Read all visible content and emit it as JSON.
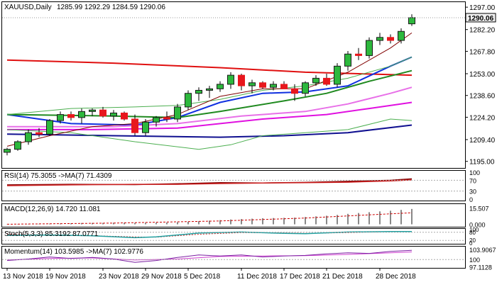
{
  "header": {
    "symbol": "XAUUSD,Daily",
    "ohlc": "1285.99 1292.29 1284.59 1290.06"
  },
  "colors": {
    "bull": "#2db83d",
    "bear": "#e8171d",
    "bull_border": "#1a1a1a",
    "ma_red": "#e01010",
    "ma_blue": "#1030e0",
    "ma_green": "#208a20",
    "ma_pink": "#e870e8",
    "ma_magenta": "#e010e0",
    "ma_navy": "#101090",
    "bb_green": "#4caf50",
    "dark_red": "#800000",
    "rsi_ma": "#cc2020",
    "macd_hist": "#888888",
    "macd_signal": "#cc0000",
    "stoch_main": "#20a0a0",
    "stoch_signal": "#cc2020",
    "mom_main": "#7b1fa2",
    "mom_signal": "#d040d0",
    "price_tag_bg": "#f0f0f0"
  },
  "chart_data": [
    {
      "type": "candlestick",
      "pane": "price",
      "title": "XAUUSD,Daily",
      "ylim": [
        1193,
        1298
      ],
      "y_ticks": [
        "1297.00",
        "1282.20",
        "1267.80",
        "1253.00",
        "1238.60",
        "1224.20",
        "1209.40",
        "1195.00"
      ],
      "current_price_label": "1290.06",
      "current_price": 1290.06,
      "x_labels": [
        "13 Nov 2018",
        "19 Nov 2018",
        "23 Nov 2018",
        "29 Nov 2018",
        "5 Dec 2018",
        "11 Dec 2018",
        "17 Dec 2018",
        "21 Dec 2018",
        "28 Dec 2018"
      ],
      "x_label_index": [
        0,
        4,
        9,
        13,
        17,
        22,
        26,
        30,
        35
      ],
      "candles": [
        [
          1201,
          1204,
          1199,
          1203
        ],
        [
          1203,
          1209,
          1202,
          1208
        ],
        [
          1208,
          1216,
          1206,
          1214
        ],
        [
          1214,
          1217,
          1211,
          1213
        ],
        [
          1213,
          1223,
          1212,
          1222
        ],
        [
          1222,
          1228,
          1220,
          1226
        ],
        [
          1226,
          1228,
          1222,
          1224
        ],
        [
          1224,
          1230,
          1220,
          1228
        ],
        [
          1228,
          1230,
          1225,
          1229
        ],
        [
          1229,
          1231,
          1224,
          1225
        ],
        [
          1225,
          1229,
          1222,
          1227
        ],
        [
          1227,
          1228,
          1222,
          1223
        ],
        [
          1223,
          1226,
          1212,
          1214
        ],
        [
          1214,
          1223,
          1212,
          1221
        ],
        [
          1221,
          1225,
          1218,
          1224
        ],
        [
          1224,
          1228,
          1221,
          1223
        ],
        [
          1223,
          1233,
          1221,
          1231
        ],
        [
          1231,
          1242,
          1229,
          1240
        ],
        [
          1240,
          1244,
          1235,
          1242
        ],
        [
          1242,
          1245,
          1237,
          1243
        ],
        [
          1243,
          1248,
          1241,
          1246
        ],
        [
          1246,
          1254,
          1243,
          1252
        ],
        [
          1252,
          1253,
          1242,
          1245
        ],
        [
          1245,
          1249,
          1240,
          1247
        ],
        [
          1247,
          1248,
          1243,
          1244
        ],
        [
          1244,
          1248,
          1242,
          1246
        ],
        [
          1246,
          1248,
          1243,
          1243
        ],
        [
          1243,
          1246,
          1235,
          1240
        ],
        [
          1240,
          1248,
          1238,
          1247
        ],
        [
          1247,
          1252,
          1245,
          1250
        ],
        [
          1250,
          1253,
          1245,
          1246
        ],
        [
          1246,
          1260,
          1244,
          1258
        ],
        [
          1258,
          1268,
          1255,
          1266
        ],
        [
          1266,
          1270,
          1262,
          1265
        ],
        [
          1265,
          1277,
          1263,
          1275
        ],
        [
          1275,
          1280,
          1272,
          1277
        ],
        [
          1277,
          1279,
          1273,
          1275
        ],
        [
          1275,
          1283,
          1273,
          1281
        ],
        [
          1285.99,
          1292.29,
          1284.59,
          1290.06
        ]
      ],
      "series": [
        {
          "color_key": "ma_red",
          "points": [
            [
              0,
              1262
            ],
            [
              10,
              1260
            ],
            [
              20,
              1257
            ],
            [
              28,
              1254
            ],
            [
              38,
              1252
            ]
          ]
        },
        {
          "color_key": "ma_blue",
          "points": [
            [
              0,
              1226
            ],
            [
              6,
              1220
            ],
            [
              12,
              1219
            ],
            [
              16,
              1224
            ],
            [
              20,
              1234
            ],
            [
              24,
              1240
            ],
            [
              28,
              1241
            ],
            [
              32,
              1245
            ],
            [
              36,
              1258
            ],
            [
              38,
              1264
            ]
          ]
        },
        {
          "color_key": "ma_green",
          "points": [
            [
              0,
              1226
            ],
            [
              10,
              1225
            ],
            [
              16,
              1224
            ],
            [
              20,
              1228
            ],
            [
              26,
              1235
            ],
            [
              30,
              1240
            ],
            [
              34,
              1248
            ],
            [
              38,
              1255
            ]
          ]
        },
        {
          "color_key": "ma_pink",
          "points": [
            [
              0,
              1218
            ],
            [
              10,
              1218
            ],
            [
              16,
              1220
            ],
            [
              22,
              1225
            ],
            [
              28,
              1228
            ],
            [
              32,
              1233
            ],
            [
              36,
              1240
            ],
            [
              38,
              1244
            ]
          ]
        },
        {
          "color_key": "ma_magenta",
          "points": [
            [
              0,
              1216
            ],
            [
              8,
              1216
            ],
            [
              16,
              1217
            ],
            [
              24,
              1223
            ],
            [
              30,
              1226
            ],
            [
              34,
              1230
            ],
            [
              38,
              1234
            ]
          ]
        },
        {
          "color_key": "ma_navy",
          "points": [
            [
              0,
              1213
            ],
            [
              10,
              1212
            ],
            [
              20,
              1211
            ],
            [
              26,
              1212
            ],
            [
              32,
              1214
            ],
            [
              38,
              1219
            ]
          ]
        },
        {
          "color_key": "bb_green",
          "points": [
            [
              0,
              1226
            ],
            [
              6,
              1230
            ],
            [
              12,
              1231
            ],
            [
              16,
              1232
            ],
            [
              20,
              1236
            ],
            [
              24,
              1242
            ],
            [
              28,
              1245
            ],
            [
              32,
              1250
            ],
            [
              36,
              1258
            ],
            [
              38,
              1264
            ]
          ]
        },
        {
          "color_key": "bb_green",
          "points": [
            [
              0,
              1216
            ],
            [
              6,
              1214
            ],
            [
              12,
              1208
            ],
            [
              18,
              1203
            ],
            [
              21,
              1206
            ],
            [
              24,
              1212
            ],
            [
              28,
              1214
            ],
            [
              32,
              1216
            ],
            [
              36,
              1223
            ],
            [
              38,
              1222
            ]
          ]
        },
        {
          "color_key": "dark_red",
          "points": [
            [
              0,
              1205
            ],
            [
              4,
              1212
            ],
            [
              8,
              1218
            ],
            [
              12,
              1220
            ],
            [
              16,
              1226
            ],
            [
              20,
              1238
            ],
            [
              24,
              1243
            ],
            [
              28,
              1243
            ],
            [
              32,
              1254
            ],
            [
              36,
              1270
            ],
            [
              38,
              1280
            ]
          ]
        }
      ]
    },
    {
      "type": "line",
      "pane": "rsi",
      "label": "RSI(14) 75.3055  ->MA(7) 71.4309",
      "ylim": [
        0,
        100
      ],
      "y_ticks": [
        "100",
        "70",
        "30",
        "0"
      ],
      "series": [
        {
          "color_key": "dark_red",
          "points": [
            [
              0,
              53
            ],
            [
              6,
              55
            ],
            [
              12,
              54
            ],
            [
              16,
              57
            ],
            [
              20,
              61
            ],
            [
              24,
              60
            ],
            [
              28,
              62
            ],
            [
              32,
              66
            ],
            [
              36,
              70
            ],
            [
              38,
              75.3055
            ]
          ]
        },
        {
          "color_key": "rsi_ma",
          "points": [
            [
              0,
              50
            ],
            [
              6,
              53
            ],
            [
              12,
              55
            ],
            [
              16,
              55
            ],
            [
              20,
              58
            ],
            [
              24,
              60
            ],
            [
              28,
              61
            ],
            [
              32,
              63
            ],
            [
              36,
              68
            ],
            [
              38,
              71.4309
            ]
          ]
        }
      ]
    },
    {
      "type": "bar",
      "pane": "macd",
      "label": "MACD(12,26,9) 14.720 11.081",
      "ylim": [
        -1,
        18
      ],
      "y_ticks": [
        "15.507",
        "0.000"
      ],
      "histogram": [
        0.2,
        0.3,
        0.4,
        0.5,
        0.6,
        0.8,
        1.0,
        1.2,
        1.3,
        1.4,
        1.5,
        1.5,
        1.4,
        1.5,
        1.6,
        1.7,
        2.0,
        2.5,
        3.0,
        3.5,
        4.0,
        4.6,
        5.0,
        5.4,
        5.8,
        6.0,
        6.2,
        6.4,
        7.0,
        7.6,
        8.2,
        9.0,
        10.0,
        10.8,
        11.6,
        12.4,
        13.0,
        13.8,
        14.72
      ],
      "signal_points": [
        [
          0,
          0.1
        ],
        [
          10,
          1.2
        ],
        [
          20,
          3.2
        ],
        [
          28,
          6.0
        ],
        [
          38,
          11.081
        ]
      ]
    },
    {
      "type": "line",
      "pane": "stoch",
      "label": "Stoch(5,3,3) 85.3192 87.0771",
      "ylim": [
        0,
        100
      ],
      "y_ticks": [
        "100",
        "80",
        "20",
        "0"
      ],
      "series": [
        {
          "color_key": "stoch_main",
          "points": [
            [
              0,
              58
            ],
            [
              4,
              60
            ],
            [
              8,
              54
            ],
            [
              12,
              40
            ],
            [
              14,
              46
            ],
            [
              18,
              74
            ],
            [
              22,
              82
            ],
            [
              26,
              72
            ],
            [
              28,
              70
            ],
            [
              32,
              82
            ],
            [
              36,
              86
            ],
            [
              38,
              85.3192
            ]
          ]
        },
        {
          "color_key": "stoch_signal",
          "points": [
            [
              0,
              66
            ],
            [
              4,
              60
            ],
            [
              8,
              55
            ],
            [
              12,
              45
            ],
            [
              14,
              44
            ],
            [
              18,
              65
            ],
            [
              22,
              78
            ],
            [
              26,
              76
            ],
            [
              28,
              72
            ],
            [
              32,
              78
            ],
            [
              36,
              86
            ],
            [
              38,
              87.0771
            ]
          ]
        }
      ]
    },
    {
      "type": "line",
      "pane": "momentum",
      "label": "Momentum(14) 103.5985  ->MA(7) 102.9776",
      "ylim": [
        97,
        104.5
      ],
      "y_ticks": [
        "103.9067",
        "100",
        "97.1128"
      ],
      "series": [
        {
          "color_key": "mom_main",
          "points": [
            [
              0,
              99.6
            ],
            [
              2,
              100.2
            ],
            [
              4,
              101.0
            ],
            [
              6,
              100.4
            ],
            [
              8,
              100.8
            ],
            [
              10,
              100.2
            ],
            [
              12,
              98.9
            ],
            [
              14,
              99.6
            ],
            [
              16,
              100.8
            ],
            [
              18,
              101.8
            ],
            [
              20,
              101.4
            ],
            [
              22,
              101.8
            ],
            [
              24,
              101.0
            ],
            [
              26,
              101.4
            ],
            [
              28,
              101.6
            ],
            [
              30,
              102.2
            ],
            [
              32,
              102.6
            ],
            [
              34,
              102.4
            ],
            [
              36,
              103.2
            ],
            [
              38,
              103.5985
            ]
          ]
        },
        {
          "color_key": "mom_signal",
          "points": [
            [
              0,
              99.8
            ],
            [
              4,
              100.4
            ],
            [
              8,
              100.6
            ],
            [
              12,
              99.8
            ],
            [
              16,
              100.2
            ],
            [
              20,
              101.2
            ],
            [
              24,
              101.4
            ],
            [
              28,
              101.5
            ],
            [
              32,
              102.0
            ],
            [
              36,
              102.6
            ],
            [
              38,
              102.9776
            ]
          ]
        }
      ]
    }
  ]
}
